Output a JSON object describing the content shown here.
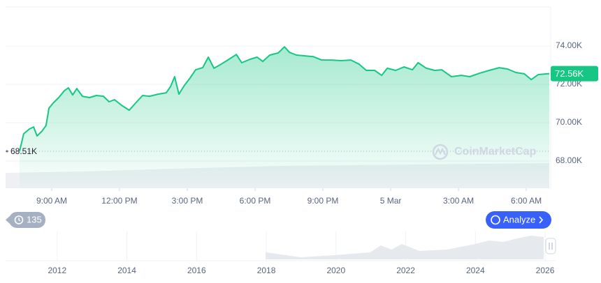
{
  "chart_data": {
    "type": "line",
    "color": "#16c784",
    "x": [
      7.58,
      7.76,
      8.01,
      8.2,
      8.35,
      8.57,
      8.75,
      8.88,
      9.06,
      9.31,
      9.56,
      9.74,
      9.93,
      10.11,
      10.36,
      10.67,
      10.98,
      11.29,
      11.54,
      11.78,
      12.09,
      12.43,
      12.71,
      13.02,
      13.33,
      13.7,
      14.07,
      14.26,
      14.44,
      14.63,
      14.88,
      15.12,
      15.37,
      15.68,
      15.93,
      16.18,
      16.49,
      16.79,
      17.17,
      17.41,
      17.78,
      18.09,
      18.34,
      18.65,
      19.02,
      19.3,
      19.52,
      19.83,
      20.2,
      20.57,
      20.94,
      21.37,
      21.81,
      22.24,
      22.61,
      22.92,
      23.29,
      23.6,
      23.85,
      24.22,
      24.59,
      24.96,
      25.21,
      25.58,
      25.95,
      26.26,
      26.69,
      27.13,
      27.5,
      27.93,
      28.36,
      28.8,
      29.17,
      29.54,
      29.91,
      30.22,
      30.53,
      31.02
    ],
    "values": [
      68510,
      69420,
      69670,
      69780,
      69310,
      69560,
      69850,
      70760,
      71020,
      71310,
      71670,
      71820,
      71450,
      71780,
      71380,
      71310,
      71420,
      71380,
      71090,
      71200,
      70910,
      70650,
      71020,
      71420,
      71380,
      71490,
      71560,
      71890,
      72400,
      71490,
      71960,
      72330,
      72760,
      72870,
      73420,
      72840,
      73050,
      73270,
      73560,
      73130,
      73310,
      73420,
      73200,
      73530,
      73640,
      73960,
      73670,
      73530,
      73490,
      73450,
      73270,
      73270,
      73240,
      73270,
      73050,
      72730,
      72730,
      72470,
      72840,
      72730,
      72910,
      72760,
      73130,
      72840,
      72730,
      72760,
      72400,
      72470,
      72400,
      72580,
      72730,
      72870,
      72800,
      72620,
      72550,
      72250,
      72510,
      72560
    ],
    "xlim": [
      6.96,
      31.08
    ],
    "xticks": [
      {
        "value": 9,
        "label": "9:00 AM"
      },
      {
        "value": 12,
        "label": "12:00 PM"
      },
      {
        "value": 15,
        "label": "3:00 PM"
      },
      {
        "value": 18,
        "label": "6:00 PM"
      },
      {
        "value": 21,
        "label": "9:00 PM"
      },
      {
        "value": 24,
        "label": "5 Mar"
      },
      {
        "value": 27,
        "label": "3:00 AM"
      },
      {
        "value": 30,
        "label": "6:00 AM"
      }
    ],
    "ylim": [
      66580,
      76040
    ],
    "yticks": [
      {
        "value": 68000,
        "label": "68.00K"
      },
      {
        "value": 70000,
        "label": "70.00K"
      },
      {
        "value": 72000,
        "label": "72.00K"
      },
      {
        "value": 74000,
        "label": "74.00K"
      }
    ],
    "grid": true,
    "annotations": [
      {
        "value": 68510,
        "label": "68.51K"
      },
      {
        "value": 72560,
        "label": "72.56K"
      }
    ],
    "watermark": "CoinMarketCap",
    "navigator": {
      "xlim": [
        2010.52,
        2026.3
      ],
      "xticks": [
        2012,
        2014,
        2016,
        2018,
        2020,
        2022,
        2024,
        2026
      ]
    },
    "history_badge": "135",
    "button": "Analyze"
  }
}
